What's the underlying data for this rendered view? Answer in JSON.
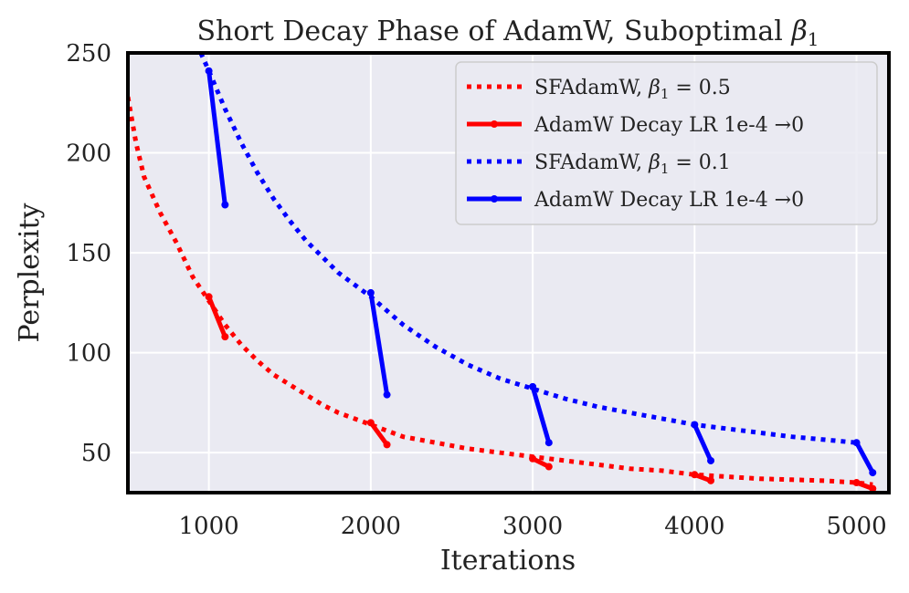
{
  "chart_data": {
    "type": "line",
    "title": "Short Decay Phase of AdamW, Suboptimal β1",
    "xlabel": "Iterations",
    "ylabel": "Perplexity",
    "xlim": [
      500,
      5200
    ],
    "ylim": [
      30,
      250
    ],
    "xticks": [
      1000,
      2000,
      3000,
      4000,
      5000
    ],
    "yticks": [
      50,
      100,
      150,
      200,
      250
    ],
    "grid": true,
    "legend_position": "top-right",
    "series": [
      {
        "name": "SFAdamW, β1 = 0.5",
        "color": "#ff0000",
        "style": "dotted",
        "x": [
          500,
          550,
          600,
          700,
          800,
          900,
          1000,
          1100,
          1200,
          1300,
          1400,
          1500,
          1600,
          1700,
          1800,
          1900,
          2000,
          2100,
          2200,
          2400,
          2600,
          2800,
          3000,
          3200,
          3400,
          3600,
          3800,
          4000,
          4200,
          4400,
          4600,
          4800,
          5000,
          5100
        ],
        "y": [
          228,
          205,
          188,
          170,
          155,
          138,
          126,
          114,
          104,
          96,
          89,
          84,
          79,
          74,
          70,
          67,
          64,
          61,
          58,
          55,
          52,
          50,
          48,
          46,
          44,
          42,
          41,
          39,
          38,
          37,
          36.5,
          36,
          35,
          34
        ]
      },
      {
        "name": "AdamW Decay LR 1e-4 → 0",
        "color": "#ff0000",
        "style": "solid",
        "segments": [
          {
            "x": [
              1000,
              1100
            ],
            "y": [
              128,
              108
            ]
          },
          {
            "x": [
              2000,
              2100
            ],
            "y": [
              65,
              54
            ]
          },
          {
            "x": [
              3000,
              3100
            ],
            "y": [
              47,
              43
            ]
          },
          {
            "x": [
              4000,
              4100
            ],
            "y": [
              39,
              36
            ]
          },
          {
            "x": [
              5000,
              5100
            ],
            "y": [
              35,
              32
            ]
          }
        ]
      },
      {
        "name": "SFAdamW, β1 = 0.1",
        "color": "#0000ff",
        "style": "dotted",
        "x": [
          950,
          1000,
          1100,
          1200,
          1300,
          1400,
          1500,
          1600,
          1800,
          2000,
          2200,
          2400,
          2600,
          2800,
          3000,
          3200,
          3400,
          3600,
          3800,
          4000,
          4200,
          4400,
          4600,
          4800,
          5000
        ],
        "y": [
          250,
          241,
          222,
          205,
          190,
          177,
          166,
          156,
          140,
          128,
          114,
          103,
          94,
          87,
          82,
          77,
          73,
          70,
          67,
          64,
          62,
          60,
          58,
          56.5,
          55
        ]
      },
      {
        "name": "AdamW Decay LR 1e-4 → 0",
        "color": "#0000ff",
        "style": "solid",
        "segments": [
          {
            "x": [
              1000,
              1100
            ],
            "y": [
              241,
              174
            ]
          },
          {
            "x": [
              2000,
              2100
            ],
            "y": [
              130,
              79
            ]
          },
          {
            "x": [
              3000,
              3100
            ],
            "y": [
              83,
              55
            ]
          },
          {
            "x": [
              4000,
              4100
            ],
            "y": [
              64,
              46
            ]
          },
          {
            "x": [
              5000,
              5100
            ],
            "y": [
              55,
              40
            ]
          }
        ]
      }
    ],
    "legend": [
      {
        "series_index": 0,
        "label_prefix": "SFAdamW, ",
        "label_var": "β",
        "label_sub": "1",
        "label_suffix": " = 0.5"
      },
      {
        "series_index": 1,
        "label": "AdamW Decay LR 1e-4 →0"
      },
      {
        "series_index": 2,
        "label_prefix": "SFAdamW, ",
        "label_var": "β",
        "label_sub": "1",
        "label_suffix": " = 0.1"
      },
      {
        "series_index": 3,
        "label": "AdamW Decay LR 1e-4 →0"
      }
    ],
    "title_parts": {
      "text": "Short Decay Phase of AdamW, Suboptimal ",
      "var": "β",
      "sub": "1"
    }
  }
}
